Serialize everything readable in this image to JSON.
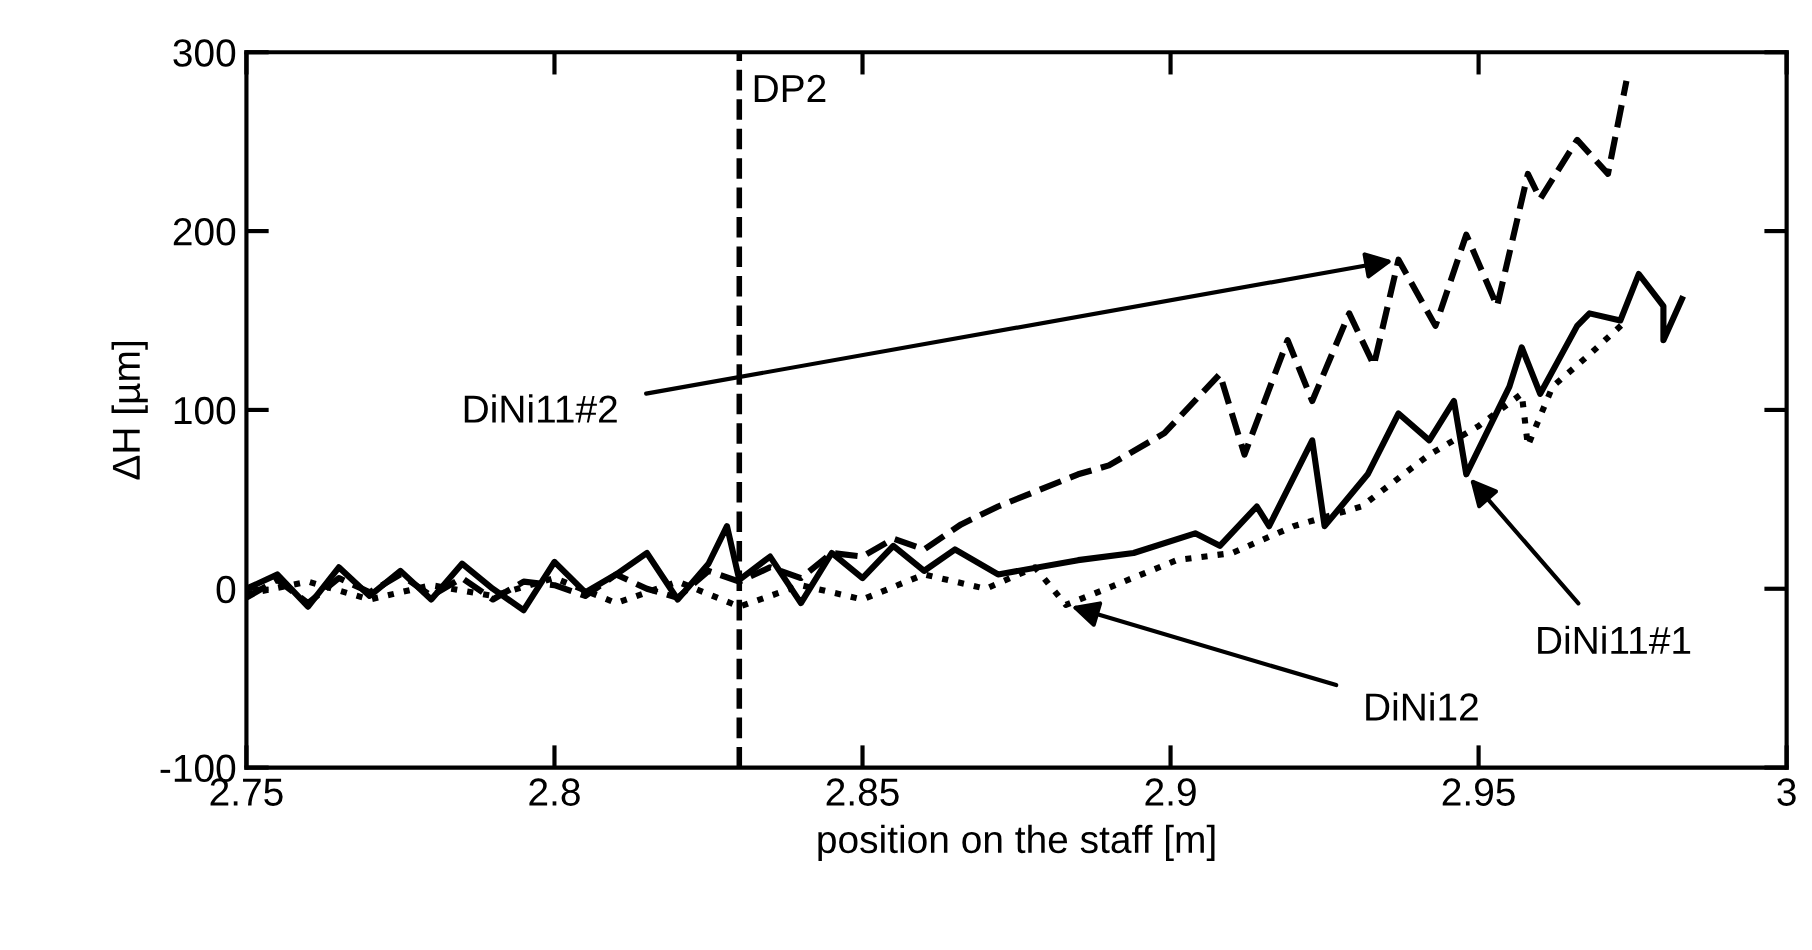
{
  "chart_data": {
    "type": "line",
    "xlabel": "position on the staff [m]",
    "ylabel": "ΔH [µm]",
    "xlim": [
      2.75,
      3.0
    ],
    "xticks": [
      2.75,
      2.8,
      2.85,
      2.9,
      2.95,
      3
    ],
    "ylim": [
      -100,
      300
    ],
    "yticks": [
      -100,
      0,
      100,
      200,
      300
    ],
    "grid": false,
    "legend": false,
    "series": [
      {
        "color": "#000000",
        "line_style": "solid",
        "x": [
          2.75,
          2.755,
          2.76,
          2.765,
          2.77,
          2.775,
          2.78,
          2.785,
          2.79,
          2.795,
          2.8,
          2.805,
          2.81,
          2.815,
          2.82,
          2.825,
          2.828,
          2.83,
          2.835,
          2.84,
          2.845,
          2.85,
          2.855,
          2.86,
          2.865,
          2.872,
          2.885,
          2.894,
          2.904,
          2.908,
          2.914,
          2.916,
          2.923,
          2.925,
          2.932,
          2.937,
          2.942,
          2.946,
          2.948,
          2.955,
          2.957,
          2.96,
          2.966,
          2.968,
          2.973,
          2.976,
          2.98,
          2.98,
          2.983
        ],
        "values": [
          0,
          8,
          -10,
          12,
          -4,
          10,
          -6,
          14,
          0,
          -12,
          15,
          -2,
          8,
          20,
          -6,
          14,
          35,
          5,
          18,
          -8,
          20,
          6,
          24,
          10,
          22,
          8,
          16,
          20,
          31,
          24,
          46,
          35,
          83,
          35,
          64,
          98,
          83,
          105,
          64,
          113,
          135,
          109,
          147,
          154,
          150,
          176,
          158,
          139,
          162
        ]
      },
      {
        "color": "#000000",
        "line_style": "dashed",
        "x": [
          2.75,
          2.755,
          2.76,
          2.765,
          2.77,
          2.775,
          2.78,
          2.785,
          2.79,
          2.795,
          2.8,
          2.805,
          2.81,
          2.815,
          2.82,
          2.825,
          2.83,
          2.835,
          2.84,
          2.845,
          2.85,
          2.855,
          2.86,
          2.866,
          2.872,
          2.885,
          2.89,
          2.899,
          2.908,
          2.912,
          2.919,
          2.923,
          2.929,
          2.933,
          2.937,
          2.943,
          2.948,
          2.953,
          2.958,
          2.96,
          2.966,
          2.971,
          2.974
        ],
        "values": [
          -5,
          5,
          -8,
          6,
          -2,
          8,
          -4,
          6,
          -6,
          4,
          2,
          -4,
          8,
          0,
          -5,
          10,
          4,
          12,
          6,
          20,
          18,
          28,
          22,
          36,
          46,
          64,
          69,
          87,
          120,
          75,
          139,
          105,
          154,
          125,
          184,
          147,
          198,
          158,
          232,
          218,
          251,
          232,
          284
        ]
      },
      {
        "color": "#000000",
        "line_style": "dotted",
        "x": [
          2.75,
          2.76,
          2.77,
          2.78,
          2.79,
          2.8,
          2.81,
          2.82,
          2.83,
          2.84,
          2.85,
          2.86,
          2.87,
          2.878,
          2.883,
          2.891,
          2.901,
          2.91,
          2.92,
          2.931,
          2.942,
          2.95,
          2.957,
          2.958,
          2.962,
          2.968,
          2.974
        ],
        "values": [
          -3,
          4,
          -6,
          2,
          -4,
          6,
          -8,
          4,
          -10,
          2,
          -6,
          8,
          0,
          12,
          -9,
          2,
          16,
          20,
          35,
          46,
          75,
          91,
          109,
          80,
          113,
          131,
          150
        ]
      }
    ],
    "ref_lines": [
      {
        "axis": "x",
        "value": 2.83,
        "label": "DP2",
        "color": "#000000",
        "line_style": "dashed"
      }
    ],
    "annotations": [
      {
        "text": "DiNi11#2",
        "x": 2.937,
        "y": 184
      },
      {
        "text": "DiNi11#1",
        "x": 2.948,
        "y": 64
      },
      {
        "text": "DiNi12",
        "x": 2.883,
        "y": -9
      }
    ]
  }
}
